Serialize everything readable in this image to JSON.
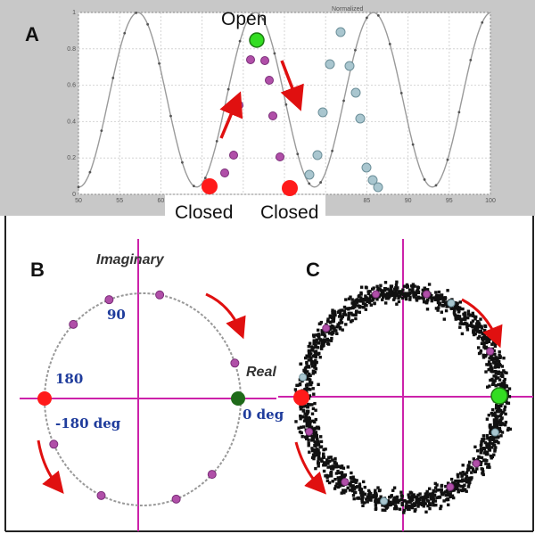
{
  "panels": {
    "a": {
      "letter": "A"
    },
    "b": {
      "letter": "B"
    },
    "c": {
      "letter": "C"
    }
  },
  "state_labels": {
    "open": "Open",
    "closed_left": "Closed",
    "closed_right": "Closed"
  },
  "phase_plot": {
    "imaginary_label": "Imaginary",
    "real_label": "Real",
    "angles": {
      "a90": "90",
      "a180": "180",
      "am180": "-180 deg",
      "a0": "0 deg"
    }
  },
  "top_plot_header_fragment": "Normalized",
  "colors": {
    "closed_marker": "#ff1a1a",
    "open_marker": "#33dd22",
    "real_marker": "#1f6a1a",
    "axis_lines": "#cc22aa",
    "phase_points": "#b04fa8",
    "scatter_points": "#111111",
    "light_points": "#a9c6cf",
    "arrows": "#e01010",
    "angle_text": "#1f3c9c"
  },
  "chart_data": {
    "type": "line",
    "xlabel": "",
    "ylabel": "",
    "xlim": [
      50,
      100
    ],
    "ylim": [
      0,
      1
    ],
    "x_ticks": [
      50,
      55,
      60,
      65,
      70,
      75,
      80,
      85,
      90,
      95,
      100
    ],
    "y_ticks": [
      0,
      0.2,
      0.4,
      0.6,
      0.8,
      1
    ],
    "x_tick_labels": [
      "50",
      "55",
      "60",
      "",
      "",
      "",
      "",
      "85",
      "90",
      "95",
      "100"
    ],
    "y_tick_labels": [
      "0",
      "0.2",
      "0.4",
      "0.6",
      "0.8",
      "1"
    ],
    "period": 14.3,
    "peaks_at_x": [
      57.2,
      71.5,
      85.8,
      100.1
    ],
    "minimum": 0.04,
    "maximum": 1.0
  }
}
